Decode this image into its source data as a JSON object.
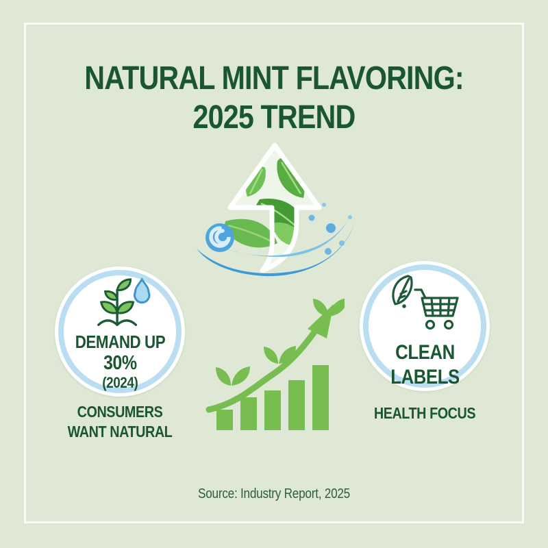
{
  "infographic": {
    "background_color": "#dee8d5",
    "frame_color": "#fcfefb",
    "accent_dark_green": "#1a5632",
    "accent_green": "#77bd50",
    "accent_blue": "#3d9ad6",
    "ring_blue": "#b9ddf1",
    "title_line1": "NATURAL MINT FLAVORING:",
    "title_line2": "2025 TREND",
    "source_text": "Source: Industry Report, 2025"
  },
  "hero": {
    "icon": "mint-leaves-up-arrow-with-blue-wave"
  },
  "left_badge": {
    "icon": "sprout-with-water-droplet",
    "stat_label": "DEMAND UP",
    "stat_value": "30%",
    "stat_year": "(2024)",
    "caption_line1": "CONSUMERS",
    "caption_line2": "WANT NATURAL"
  },
  "right_badge": {
    "icon": "leaf-with-shopping-cart",
    "label_line1": "CLEAN",
    "label_line2": "LABELS",
    "caption": "HEALTH FOCUS"
  },
  "chart_data": {
    "type": "bar",
    "title": "Decorative growth chart (no axes or numeric labels shown)",
    "categories": [
      "bar1",
      "bar2",
      "bar3",
      "bar4",
      "bar5"
    ],
    "values": [
      30,
      48,
      58,
      73,
      95
    ],
    "unit": "relative bar height, px",
    "bar_color": "#77bd50",
    "annotations": [
      "rising curved arrow",
      "three small leaf sprigs"
    ],
    "grid": false,
    "legend": false
  }
}
